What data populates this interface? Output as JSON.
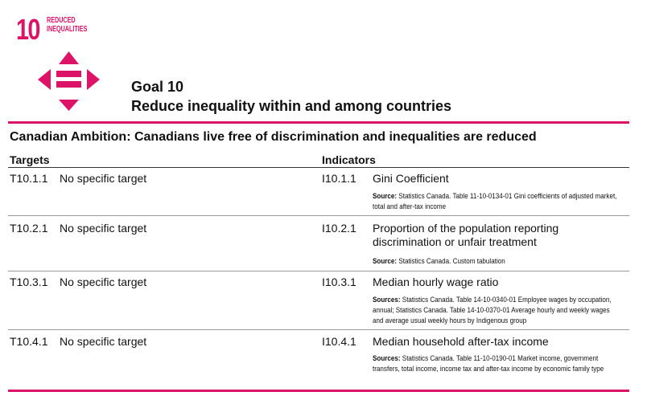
{
  "icon": {
    "number": "10",
    "label_lines": [
      "REDUCED",
      "INEQUALITIES"
    ]
  },
  "header": {
    "goal": "Goal 10",
    "title": "Reduce inequality within and among countries"
  },
  "ambition": "Canadian Ambition: Canadians live free of discrimination and inequalities are reduced",
  "columns": {
    "targets": "Targets",
    "indicators": "Indicators"
  },
  "rows": [
    {
      "target_code": "T10.1.1",
      "target": "No specific target",
      "indicator_code": "I10.1.1",
      "indicator": "Gini Coefficient",
      "source_label": "Source:",
      "source": "Statistics Canada. Table 11-10-0134-01 Gini coefficients of adjusted market, total and after-tax income"
    },
    {
      "target_code": "T10.2.1",
      "target": "No specific target",
      "indicator_code": "I10.2.1",
      "indicator": "Proportion of the population reporting discrimination or unfair treatment",
      "source_label": "Source:",
      "source": "Statistics Canada. Custom tabulation"
    },
    {
      "target_code": "T10.3.1",
      "target": "No specific target",
      "indicator_code": "I10.3.1",
      "indicator": "Median hourly wage ratio",
      "source_label": "Sources:",
      "source": "Statistics Canada. Table 14-10-0340-01 Employee wages by occupation, annual; Statistics Canada. Table 14-10-0370-01 Average hourly and weekly wages and average usual weekly hours by Indigenous group"
    },
    {
      "target_code": "T10.4.1",
      "target": "No specific target",
      "indicator_code": "I10.4.1",
      "indicator": "Median household after-tax income",
      "source_label": "Sources:",
      "source": "Statistics Canada. Table 11-10-0190-01 Market income, government transfers, total income, income tax and after-tax income by economic family type"
    }
  ]
}
